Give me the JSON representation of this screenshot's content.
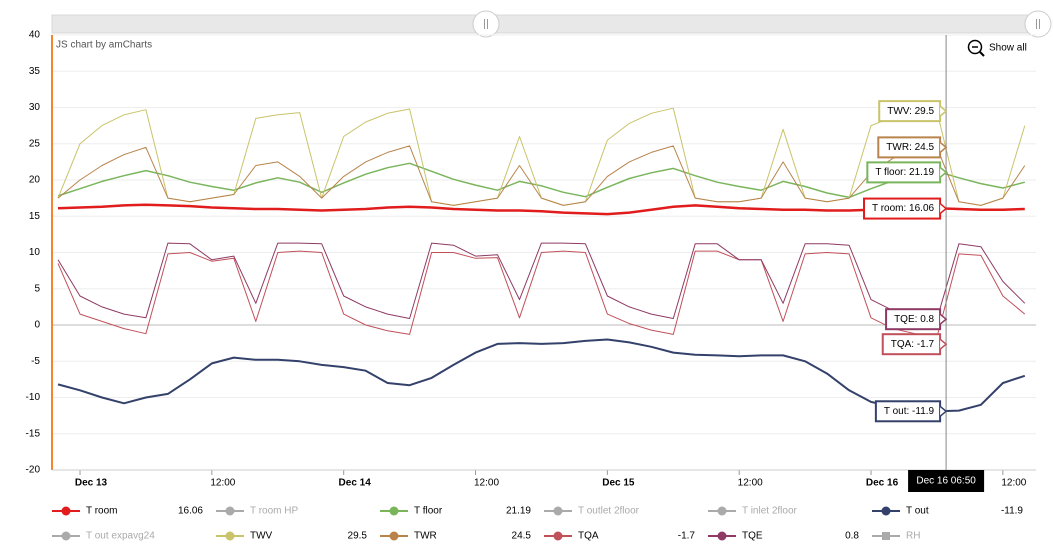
{
  "chart_data": {
    "type": "line",
    "credit": "JS chart by amCharts",
    "zoom_out_label": "Show all",
    "x": [
      "Dec 12 22:00",
      "Dec 13 00:00",
      "Dec 13 02:00",
      "Dec 13 04:00",
      "Dec 13 06:00",
      "Dec 13 08:00",
      "Dec 13 10:00",
      "Dec 13 12:00",
      "Dec 13 14:00",
      "Dec 13 16:00",
      "Dec 13 18:00",
      "Dec 13 20:00",
      "Dec 13 22:00",
      "Dec 14 00:00",
      "Dec 14 02:00",
      "Dec 14 04:00",
      "Dec 14 06:00",
      "Dec 14 08:00",
      "Dec 14 10:00",
      "Dec 14 12:00",
      "Dec 14 14:00",
      "Dec 14 16:00",
      "Dec 14 18:00",
      "Dec 14 20:00",
      "Dec 14 22:00",
      "Dec 15 00:00",
      "Dec 15 02:00",
      "Dec 15 04:00",
      "Dec 15 06:00",
      "Dec 15 08:00",
      "Dec 15 10:00",
      "Dec 15 12:00",
      "Dec 15 14:00",
      "Dec 15 16:00",
      "Dec 15 18:00",
      "Dec 15 20:00",
      "Dec 15 22:00",
      "Dec 16 00:00",
      "Dec 16 02:00",
      "Dec 16 04:00",
      "Dec 16 06:00",
      "Dec 16 08:00",
      "Dec 16 10:00",
      "Dec 16 12:00",
      "Dec 16 14:00"
    ],
    "xlim": [
      "Dec 12 21:27",
      "Dec 16 15:01"
    ],
    "xticks": [
      {
        "value": "Dec 13 00:00",
        "label": "Dec 13"
      },
      {
        "value": "Dec 13 12:00",
        "label": "12:00"
      },
      {
        "value": "Dec 14 00:00",
        "label": "Dec 14"
      },
      {
        "value": "Dec 14 12:00",
        "label": "12:00"
      },
      {
        "value": "Dec 15 00:00",
        "label": "Dec 15"
      },
      {
        "value": "Dec 15 12:00",
        "label": "12:00"
      },
      {
        "value": "Dec 16 00:00",
        "label": "Dec 16"
      },
      {
        "value": "Dec 16 12:00",
        "label": "12:00"
      }
    ],
    "ylim": [
      -20,
      40
    ],
    "yticks": [
      -20,
      -15,
      -10,
      -5,
      0,
      5,
      10,
      15,
      20,
      25,
      30,
      35,
      40
    ],
    "grid": true,
    "cursor": "Dec 16 06:50",
    "series": [
      {
        "name": "T room",
        "color": "#e01c1c",
        "width": 2.5,
        "cursor_value": 16.06,
        "balloon": "T room: 16.06",
        "values": [
          16.1,
          16.2,
          16.3,
          16.5,
          16.6,
          16.5,
          16.4,
          16.2,
          16.1,
          16,
          16,
          15.9,
          15.8,
          15.9,
          16,
          16.2,
          16.3,
          16.2,
          16,
          15.9,
          15.8,
          15.8,
          15.7,
          15.5,
          15.4,
          15.3,
          15.5,
          15.9,
          16.3,
          16.5,
          16.3,
          16.1,
          16,
          15.9,
          15.9,
          15.8,
          15.8,
          15.9,
          16,
          16.1,
          16.1,
          16,
          15.9,
          15.9,
          16
        ]
      },
      {
        "name": "T room HP",
        "color": "#aaaaaa",
        "hidden": true
      },
      {
        "name": "T floor",
        "color": "#7ab55c",
        "width": 1.5,
        "cursor_value": 21.19,
        "balloon": "T floor: 21.19",
        "values": [
          17.8,
          18.8,
          19.8,
          20.6,
          21.3,
          20.6,
          19.7,
          19.1,
          18.6,
          19.6,
          20.3,
          19.7,
          18.3,
          19.6,
          20.8,
          21.7,
          22.3,
          21.2,
          20.1,
          19.3,
          18.6,
          19.8,
          19.2,
          18.3,
          17.7,
          19,
          20.2,
          21,
          21.6,
          20.6,
          19.7,
          19.1,
          18.6,
          19.8,
          19.1,
          18.2,
          17.6,
          18.8,
          19.9,
          20.6,
          21.2,
          20.3,
          19.5,
          18.9,
          19.7
        ]
      },
      {
        "name": "T outlet 2floor",
        "color": "#aaaaaa",
        "hidden": true
      },
      {
        "name": "T inlet 2floor",
        "color": "#aaaaaa",
        "hidden": true
      },
      {
        "name": "T out",
        "color": "#33416b",
        "width": 2,
        "cursor_value": -11.9,
        "balloon": "T out: -11.9",
        "values": [
          -8.2,
          -9,
          -10,
          -10.8,
          -10,
          -9.5,
          -7.5,
          -5.3,
          -4.5,
          -4.8,
          -4.8,
          -5,
          -5.5,
          -5.8,
          -6.3,
          -8,
          -8.3,
          -7.3,
          -5.5,
          -3.8,
          -2.6,
          -2.5,
          -2.6,
          -2.5,
          -2.2,
          -2,
          -2.4,
          -3,
          -3.8,
          -4.1,
          -4.2,
          -4.3,
          -4.2,
          -4.2,
          -5,
          -6.7,
          -9,
          -10.6,
          -11.3,
          -11.7,
          -11.9,
          -11.8,
          -11,
          -8,
          -7
        ]
      },
      {
        "name": "T out expavg24",
        "color": "#aaaaaa",
        "hidden": true
      },
      {
        "name": "TWV",
        "color": "#c9c36a",
        "width": 1,
        "cursor_value": 29.5,
        "balloon": "TWV: 29.5",
        "values": [
          17.5,
          25,
          27.5,
          29,
          29.7,
          17.5,
          17,
          17.5,
          18,
          28.5,
          29,
          29.3,
          17.5,
          26,
          28,
          29.2,
          29.8,
          17,
          16.5,
          17,
          17.5,
          26,
          17.5,
          16.5,
          17,
          25.5,
          27.8,
          29.2,
          29.9,
          17.5,
          17,
          17,
          17.5,
          27,
          17.5,
          17,
          17.5,
          27.5,
          28.7,
          29.2,
          29.5,
          17,
          16.5,
          17.5,
          27.5
        ]
      },
      {
        "name": "TWR",
        "color": "#b8844c",
        "width": 1,
        "cursor_value": 24.5,
        "balloon": "TWR: 24.5",
        "values": [
          17.5,
          20,
          22,
          23.5,
          24.5,
          17.5,
          17,
          17.5,
          18,
          22,
          22.5,
          20.5,
          17.5,
          20.5,
          22.5,
          23.8,
          24.7,
          17,
          16.5,
          17,
          17.5,
          22,
          17.5,
          16.5,
          17,
          20.5,
          22.5,
          23.8,
          24.7,
          17.5,
          17,
          17,
          17.5,
          22.5,
          17.5,
          17,
          17.5,
          21,
          23,
          24,
          24.5,
          17,
          16.5,
          17.5,
          22
        ]
      },
      {
        "name": "TQA",
        "color": "#c0505a",
        "width": 1,
        "cursor_value": -1.7,
        "balloon": "TQA: -1.7",
        "values": [
          8.5,
          1.5,
          0.5,
          -0.5,
          -1.2,
          9.8,
          10,
          8.8,
          9.2,
          0.5,
          10,
          10.2,
          10,
          1.5,
          0,
          -0.8,
          -1.3,
          10,
          10,
          9.2,
          9.3,
          1,
          10,
          10.2,
          10,
          1.5,
          0.2,
          -0.7,
          -1.3,
          10.2,
          10.2,
          9,
          9,
          0.5,
          9.8,
          10,
          9.8,
          1,
          -0.5,
          -1.2,
          -1.7,
          9.8,
          9.6,
          4,
          1.5
        ]
      },
      {
        "name": "TQE",
        "color": "#8e3a64",
        "width": 1,
        "cursor_value": 0.8,
        "balloon": "TQE: 0.8",
        "values": [
          9,
          4,
          2.5,
          1.5,
          1,
          11.3,
          11.2,
          9,
          9.5,
          3,
          11.3,
          11.3,
          11.2,
          4,
          2.5,
          1.5,
          0.9,
          11.3,
          11,
          9.5,
          9.7,
          3.5,
          11.3,
          11.3,
          11.2,
          4,
          2.5,
          1.5,
          0.9,
          11.2,
          11.2,
          9,
          9,
          3,
          11.2,
          11.2,
          11,
          3.5,
          2,
          1.2,
          0.8,
          11.2,
          10.8,
          6,
          3
        ]
      },
      {
        "name": "RH",
        "color": "#aaaaaa",
        "hidden": true,
        "marker": "square"
      }
    ]
  }
}
